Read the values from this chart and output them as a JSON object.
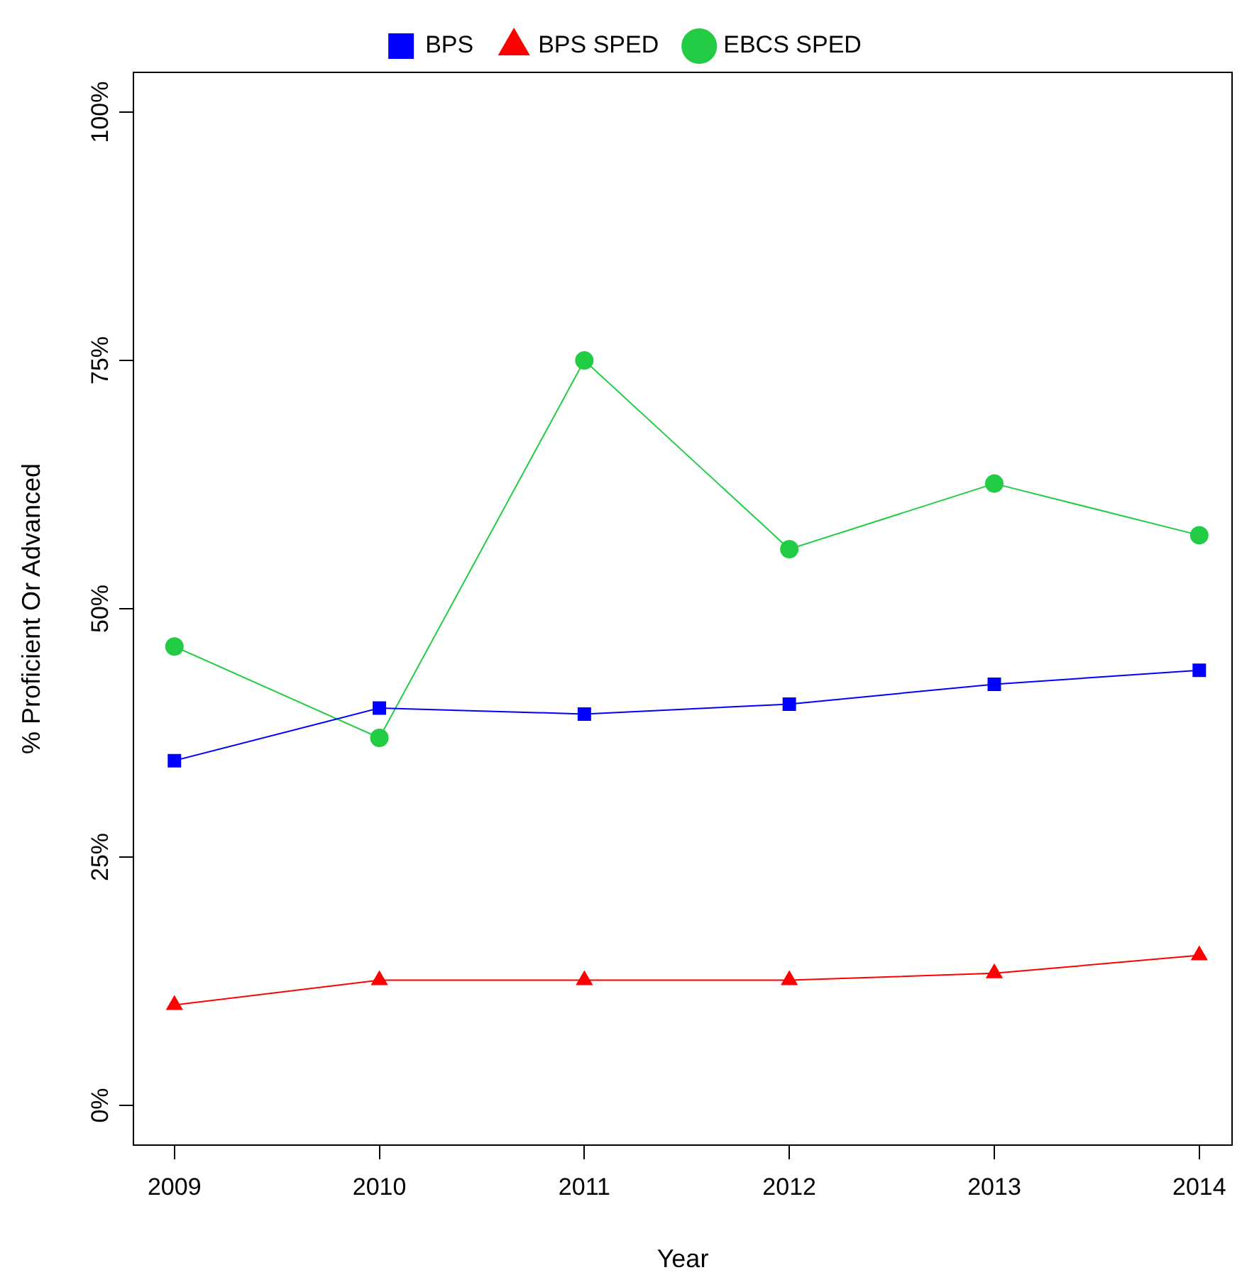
{
  "chart_data": {
    "type": "line",
    "xlabel": "Year",
    "ylabel": "% Proficient Or Advanced",
    "x": [
      2009,
      2010,
      2011,
      2012,
      2013,
      2014
    ],
    "xlim": [
      2008.8,
      2014.16
    ],
    "xticks": [
      2009,
      2010,
      2011,
      2012,
      2013,
      2014
    ],
    "ylim": [
      -4,
      104
    ],
    "yticks": [
      {
        "value": 0,
        "label": "0%"
      },
      {
        "value": 25,
        "label": "25%"
      },
      {
        "value": 50,
        "label": "50%"
      },
      {
        "value": 75,
        "label": "75%"
      },
      {
        "value": 100,
        "label": "100%"
      }
    ],
    "grid": false,
    "legend": "top",
    "line_style": "solid",
    "series": [
      {
        "name": "BPS",
        "color": "#0000ff",
        "marker": "square",
        "values": [
          34.7,
          40.0,
          39.4,
          40.4,
          42.4,
          43.8
        ]
      },
      {
        "name": "BPS SPED",
        "color": "#ff0000",
        "marker": "triangle",
        "values": [
          10.1,
          12.6,
          12.6,
          12.6,
          13.3,
          15.1
        ]
      },
      {
        "name": "EBCS SPED",
        "color": "#22cc44",
        "marker": "circle",
        "values": [
          46.2,
          37.0,
          75.0,
          56.0,
          62.6,
          57.4
        ]
      }
    ]
  }
}
